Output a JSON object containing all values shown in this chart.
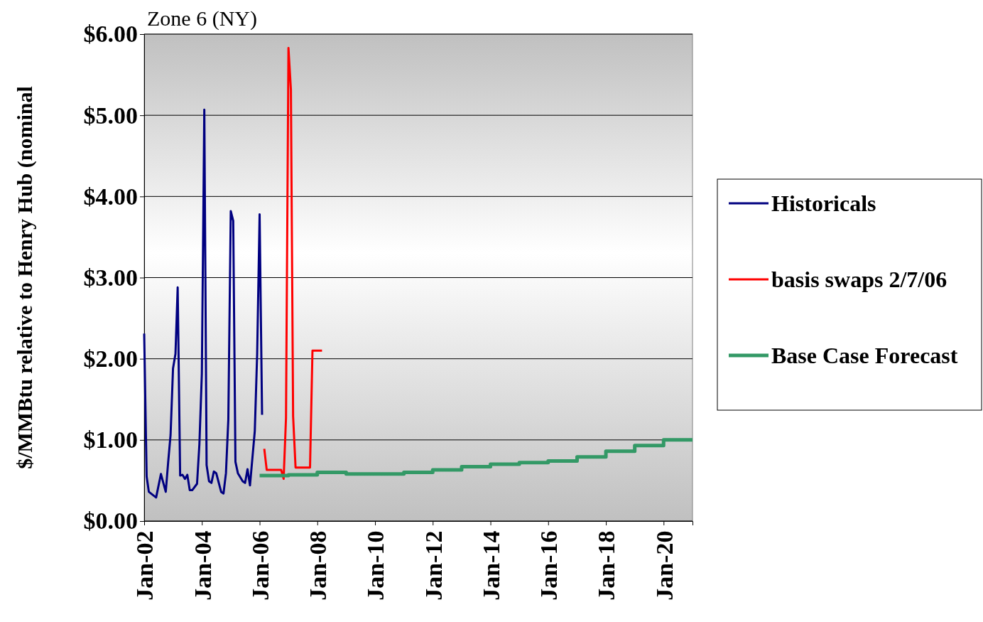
{
  "chart_data": {
    "type": "line",
    "title": "Zone 6 (NY)",
    "ylabel": "$/MMBtu relative to Henry Hub (nominal",
    "xlim": [
      "2002-01",
      "2021-01"
    ],
    "xticks": [
      {
        "value": "2002-01",
        "label": "Jan-02"
      },
      {
        "value": "2004-01",
        "label": "Jan-04"
      },
      {
        "value": "2006-01",
        "label": "Jan-06"
      },
      {
        "value": "2008-01",
        "label": "Jan-08"
      },
      {
        "value": "2010-01",
        "label": "Jan-10"
      },
      {
        "value": "2012-01",
        "label": "Jan-12"
      },
      {
        "value": "2014-01",
        "label": "Jan-14"
      },
      {
        "value": "2016-01",
        "label": "Jan-16"
      },
      {
        "value": "2018-01",
        "label": "Jan-18"
      },
      {
        "value": "2020-01",
        "label": "Jan-20"
      }
    ],
    "ylim": [
      0,
      6
    ],
    "yticks": [
      {
        "value": 0,
        "label": "$0.00"
      },
      {
        "value": 1,
        "label": "$1.00"
      },
      {
        "value": 2,
        "label": "$2.00"
      },
      {
        "value": 3,
        "label": "$3.00"
      },
      {
        "value": 4,
        "label": "$4.00"
      },
      {
        "value": 5,
        "label": "$5.00"
      },
      {
        "value": 6,
        "label": "$6.00"
      }
    ],
    "grid": "y",
    "legend": "right",
    "marker": "none",
    "line_style": "solid",
    "series": [
      {
        "name": "Historicals",
        "color": "#000080",
        "x": [
          "2002-01",
          "2002-02",
          "2002-03",
          "2002-06",
          "2002-08",
          "2002-10",
          "2002-11",
          "2002-12",
          "2003-01",
          "2003-02",
          "2003-03",
          "2003-04",
          "2003-05",
          "2003-06",
          "2003-07",
          "2003-08",
          "2003-09",
          "2003-11",
          "2003-12",
          "2004-01",
          "2004-02",
          "2004-03",
          "2004-04",
          "2004-05",
          "2004-06",
          "2004-07",
          "2004-09",
          "2004-10",
          "2004-11",
          "2004-12",
          "2005-01",
          "2005-02",
          "2005-03",
          "2005-04",
          "2005-06",
          "2005-07",
          "2005-08",
          "2005-09",
          "2005-11",
          "2005-12",
          "2006-01",
          "2006-02"
        ],
        "values": [
          2.31,
          0.55,
          0.36,
          0.29,
          0.58,
          0.36,
          0.73,
          1.06,
          1.88,
          2.06,
          2.88,
          0.56,
          0.57,
          0.52,
          0.57,
          0.38,
          0.38,
          0.46,
          0.95,
          1.82,
          5.07,
          0.69,
          0.49,
          0.47,
          0.61,
          0.59,
          0.36,
          0.34,
          0.59,
          1.25,
          3.82,
          3.7,
          0.73,
          0.59,
          0.49,
          0.47,
          0.64,
          0.44,
          1.11,
          2.06,
          3.78,
          1.31
        ]
      },
      {
        "name": "basis swaps 2/7/06",
        "color": "#ff0000",
        "x": [
          "2006-03",
          "2006-04",
          "2006-10",
          "2006-11",
          "2006-12",
          "2007-01",
          "2007-02",
          "2007-03",
          "2007-04",
          "2007-10",
          "2007-11",
          "2008-03"
        ],
        "values": [
          0.89,
          0.63,
          0.63,
          0.52,
          1.27,
          5.83,
          5.32,
          1.29,
          0.66,
          0.66,
          2.1,
          2.1
        ]
      },
      {
        "name": "Base Case Forecast",
        "type": "step",
        "color": "#339966",
        "x": [
          "2006-01",
          "2007-01",
          "2008-01",
          "2009-01",
          "2010-01",
          "2011-01",
          "2012-01",
          "2013-01",
          "2014-01",
          "2015-01",
          "2016-01",
          "2017-01",
          "2018-01",
          "2019-01",
          "2020-01",
          "2021-01"
        ],
        "values": [
          0.56,
          0.57,
          0.6,
          0.58,
          0.58,
          0.6,
          0.63,
          0.67,
          0.7,
          0.72,
          0.74,
          0.79,
          0.86,
          0.93,
          1.0,
          1.0
        ]
      }
    ]
  }
}
